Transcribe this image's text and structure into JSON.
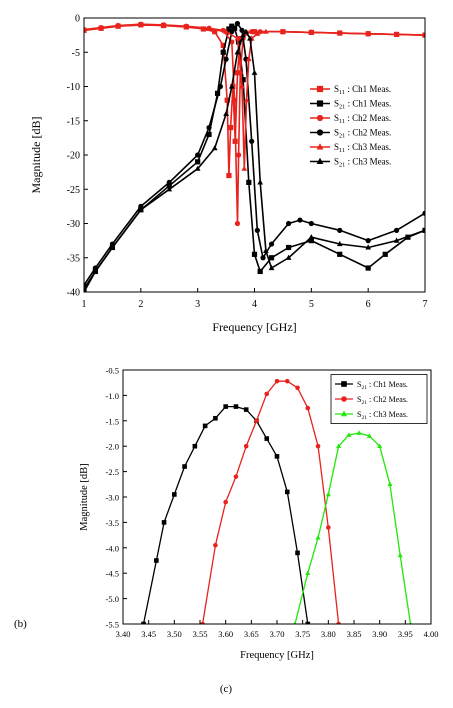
{
  "chart_data": [
    {
      "type": "line",
      "xlabel": "Frequency [GHz]",
      "ylabel": "Magnitude [dB]",
      "xlim": [
        1,
        7
      ],
      "ylim": [
        -40,
        0
      ],
      "xticks": [
        "1",
        "2",
        "3",
        "4",
        "5",
        "6",
        "7"
      ],
      "yticks": [
        "0",
        "-5",
        "-10",
        "-15",
        "-20",
        "-25",
        "-30",
        "-35",
        "-40"
      ],
      "legend": "top-right inside",
      "series": [
        {
          "name": "S11 : Ch1 Meas.",
          "label_main": "S",
          "label_sub": "11",
          "label_rest": " : Ch1 Meas.",
          "color": "#e8231d",
          "marker": "square",
          "x": [
            1,
            1.3,
            1.6,
            2.0,
            2.4,
            2.8,
            3.1,
            3.3,
            3.45,
            3.52,
            3.55,
            3.58,
            3.62,
            3.66,
            3.7,
            3.75,
            3.85,
            4.0,
            4.5,
            5.0,
            5.5,
            6.0,
            6.5,
            7.0
          ],
          "y": [
            -1.8,
            -1.5,
            -1.2,
            -1.0,
            -1.1,
            -1.3,
            -1.6,
            -2.0,
            -4.0,
            -12.0,
            -23.0,
            -16.0,
            -10.0,
            -18.0,
            -8.0,
            -3.0,
            -2.2,
            -2.0,
            -2.0,
            -2.1,
            -2.2,
            -2.3,
            -2.4,
            -2.5
          ]
        },
        {
          "name": "S21 : Ch1 Meas.",
          "label_main": "S",
          "label_sub": "21",
          "label_rest": " : Ch1 Meas.",
          "color": "#000000",
          "marker": "square",
          "x": [
            1,
            1.2,
            1.5,
            2.0,
            2.5,
            3.0,
            3.2,
            3.35,
            3.45,
            3.55,
            3.6,
            3.65,
            3.72,
            3.8,
            3.9,
            4.0,
            4.1,
            4.3,
            4.6,
            5.0,
            5.5,
            6.0,
            6.3,
            6.7,
            7.0
          ],
          "y": [
            -40,
            -37,
            -33.5,
            -28,
            -24.5,
            -21,
            -17,
            -11,
            -5,
            -1.6,
            -1.2,
            -1.5,
            -3.5,
            -9,
            -24,
            -34.5,
            -37,
            -35,
            -33.5,
            -32.5,
            -34.5,
            -36.5,
            -34.5,
            -32,
            -31
          ]
        },
        {
          "name": "S11 : Ch2 Meas.",
          "label_main": "S",
          "label_sub": "11",
          "label_rest": " : Ch2 Meas.",
          "color": "#e8231d",
          "marker": "circle",
          "x": [
            1,
            1.3,
            1.6,
            2.0,
            2.4,
            2.8,
            3.2,
            3.45,
            3.6,
            3.65,
            3.7,
            3.72,
            3.75,
            3.8,
            3.85,
            3.95,
            4.1,
            4.5,
            5.0,
            5.5,
            6.0,
            6.5,
            7.0
          ],
          "y": [
            -1.7,
            -1.4,
            -1.1,
            -0.9,
            -1.0,
            -1.2,
            -1.5,
            -1.8,
            -3.5,
            -12,
            -30,
            -20,
            -8,
            -3,
            -2.2,
            -2.0,
            -2.0,
            -2.0,
            -2.1,
            -2.2,
            -2.3,
            -2.4,
            -2.5
          ]
        },
        {
          "name": "S21 : Ch2 Meas.",
          "label_main": "S",
          "label_sub": "21",
          "label_rest": " : Ch2 Meas.",
          "color": "#000000",
          "marker": "circle",
          "x": [
            1,
            1.2,
            1.5,
            2.0,
            2.5,
            3.0,
            3.2,
            3.4,
            3.5,
            3.6,
            3.7,
            3.78,
            3.85,
            3.95,
            4.05,
            4.15,
            4.3,
            4.6,
            4.8,
            5.0,
            5.5,
            6.0,
            6.5,
            7.0
          ],
          "y": [
            -39,
            -36.5,
            -33,
            -27.5,
            -24,
            -20,
            -16,
            -10,
            -6,
            -2,
            -0.8,
            -1.8,
            -6,
            -18,
            -31,
            -35,
            -33,
            -30,
            -29.5,
            -30,
            -31,
            -32.5,
            -31,
            -28.5
          ]
        },
        {
          "name": "S11 : Ch3 Meas.",
          "label_main": "S",
          "label_sub": "11",
          "label_rest": " : Ch3 Meas.",
          "color": "#e8231d",
          "marker": "triangle",
          "x": [
            1,
            1.3,
            1.6,
            2.0,
            2.4,
            2.8,
            3.2,
            3.5,
            3.7,
            3.78,
            3.82,
            3.86,
            3.9,
            3.95,
            4.05,
            4.2,
            4.5,
            5.0,
            5.5,
            6.0,
            6.5,
            7.0
          ],
          "y": [
            -1.8,
            -1.5,
            -1.2,
            -1.0,
            -1.1,
            -1.3,
            -1.6,
            -2.0,
            -3.0,
            -10,
            -22,
            -12,
            -6,
            -3,
            -2.3,
            -2.0,
            -2.0,
            -2.1,
            -2.2,
            -2.3,
            -2.4,
            -2.5
          ]
        },
        {
          "name": "S21 : Ch3 Meas.",
          "label_main": "S",
          "label_sub": "21",
          "label_rest": " : Ch3 Meas.",
          "color": "#000000",
          "marker": "triangle",
          "x": [
            1,
            1.2,
            1.5,
            2.0,
            2.5,
            3.0,
            3.3,
            3.5,
            3.6,
            3.7,
            3.8,
            3.85,
            3.92,
            4.0,
            4.1,
            4.2,
            4.3,
            4.6,
            5.0,
            5.5,
            6.0,
            6.5,
            7.0
          ],
          "y": [
            -39.5,
            -37,
            -33.5,
            -28,
            -25,
            -22,
            -19,
            -14,
            -10,
            -5,
            -2.5,
            -2,
            -3,
            -8,
            -24,
            -34,
            -36.5,
            -35,
            -32,
            -33,
            -33.5,
            -32.5,
            -31
          ]
        }
      ]
    },
    {
      "type": "line",
      "xlabel": "Frequency [GHz]",
      "ylabel": "Magnitude [dB]",
      "xlim": [
        3.4,
        4.0
      ],
      "ylim": [
        -5.5,
        -0.5
      ],
      "xticks": [
        "3.40",
        "3.45",
        "3.50",
        "3.55",
        "3.60",
        "3.65",
        "3.70",
        "3.75",
        "3.80",
        "3.85",
        "3.90",
        "3.95",
        "4.00"
      ],
      "yticks": [
        "-0.5",
        "-1.0",
        "-1.5",
        "-2.0",
        "-2.5",
        "-3.0",
        "-3.5",
        "-4.0",
        "-4.5",
        "-5.0",
        "-5.5"
      ],
      "legend": "top-right inside",
      "series": [
        {
          "name": "S21 : Ch1 Meas.",
          "label_main": "S",
          "label_sub": "21",
          "label_rest": " : Ch1 Meas.",
          "color": "#000000",
          "marker": "square",
          "x": [
            3.44,
            3.465,
            3.48,
            3.5,
            3.52,
            3.54,
            3.56,
            3.58,
            3.6,
            3.62,
            3.64,
            3.66,
            3.68,
            3.7,
            3.72,
            3.74,
            3.76
          ],
          "y": [
            -5.5,
            -4.25,
            -3.5,
            -2.95,
            -2.4,
            -2.0,
            -1.6,
            -1.45,
            -1.22,
            -1.22,
            -1.28,
            -1.5,
            -1.85,
            -2.2,
            -2.9,
            -4.1,
            -5.5
          ]
        },
        {
          "name": "S21 : Ch2 Meas.",
          "label_main": "S",
          "label_sub": "21",
          "label_rest": " : Ch2 Meas.",
          "color": "#e8231d",
          "marker": "circle",
          "x": [
            3.555,
            3.58,
            3.6,
            3.62,
            3.64,
            3.66,
            3.68,
            3.7,
            3.72,
            3.74,
            3.76,
            3.78,
            3.8,
            3.82
          ],
          "y": [
            -5.5,
            -3.95,
            -3.1,
            -2.6,
            -2.0,
            -1.5,
            -0.97,
            -0.72,
            -0.72,
            -0.85,
            -1.25,
            -2.0,
            -3.6,
            -5.5
          ]
        },
        {
          "name": "S21 : Ch3 Meas.",
          "label_main": "S",
          "label_sub": "21",
          "label_rest": " : Ch3 Meas.",
          "color": "#22e80c",
          "marker": "triangle",
          "x": [
            3.735,
            3.76,
            3.78,
            3.8,
            3.82,
            3.84,
            3.86,
            3.88,
            3.9,
            3.92,
            3.94,
            3.96
          ],
          "y": [
            -5.5,
            -4.5,
            -3.8,
            -2.95,
            -2.0,
            -1.78,
            -1.74,
            -1.8,
            -2.0,
            -2.75,
            -4.15,
            -5.5
          ]
        }
      ]
    }
  ],
  "panel_labels": {
    "b": "(b)",
    "c": "(c)"
  }
}
